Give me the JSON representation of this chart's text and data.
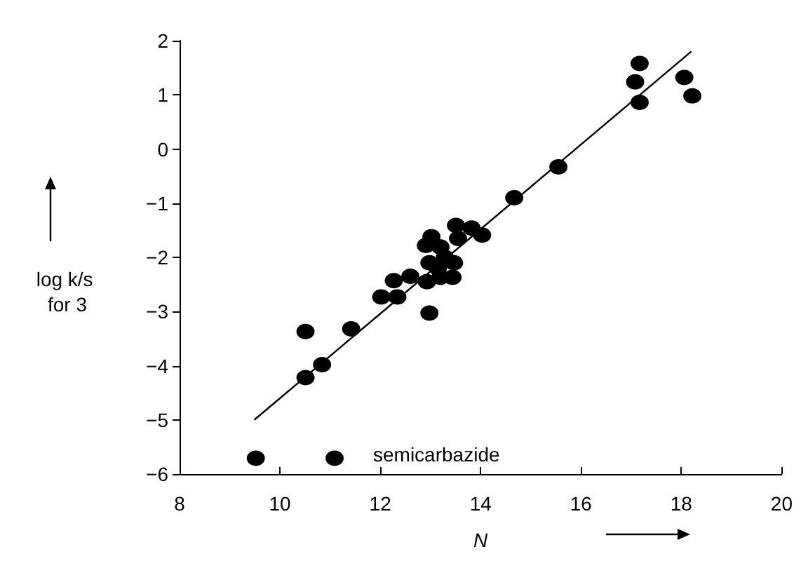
{
  "chart_data": {
    "type": "scatter",
    "xlabel": "N",
    "ylabel": "log k/s for 3",
    "xlim": [
      8,
      20
    ],
    "xticks": [
      8,
      10,
      12,
      14,
      16,
      18,
      20
    ],
    "ylim": [
      -6,
      2
    ],
    "yticks": [
      -6,
      -5,
      -4,
      -3,
      -2,
      -1,
      0,
      1,
      2
    ],
    "grid": false,
    "marker": "circle",
    "annotations": [
      "semicarbazide"
    ],
    "series": [
      {
        "color": "#000000",
        "x": [
          9.52,
          11.09,
          10.51,
          10.84,
          10.51,
          11.42,
          12.02,
          12.34,
          12.27,
          12.6,
          12.98,
          14.67,
          15.55,
          13.51,
          13.82,
          14.03,
          13.55,
          13.02,
          12.91,
          13.2,
          13.29,
          12.98,
          13.47,
          13.15,
          13.44,
          12.93,
          13.2,
          17.17,
          17.08,
          17.17,
          18.06,
          18.22
        ],
        "values": [
          -5.71,
          -5.71,
          -4.22,
          -3.98,
          -3.37,
          -3.32,
          -2.73,
          -2.73,
          -2.43,
          -2.35,
          -3.03,
          -0.9,
          -0.33,
          -1.41,
          -1.46,
          -1.59,
          -1.65,
          -1.62,
          -1.78,
          -1.81,
          -2.0,
          -2.1,
          -2.1,
          -2.2,
          -2.37,
          -2.45,
          -2.37,
          1.58,
          1.24,
          0.86,
          1.32,
          0.98
        ]
      },
      {
        "type": "line",
        "color": "#000000",
        "marker": "none",
        "x": [
          9.49,
          18.2
        ],
        "values": [
          -5.0,
          1.8
        ]
      }
    ]
  }
}
